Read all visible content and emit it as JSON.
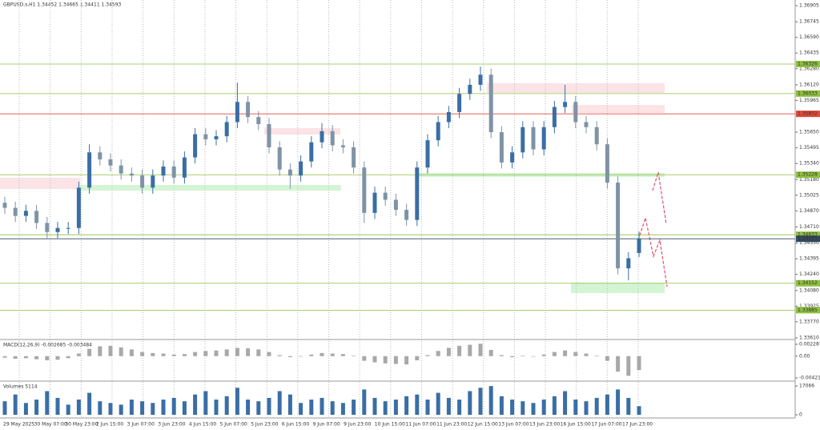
{
  "chart_data": [
    {
      "type": "candlestick",
      "title": "GBPUSD.s,H1  1.34452 1.34665 1.34411 1.34593",
      "open": [
        1.3495,
        1.349,
        1.3482,
        1.3487,
        1.3475,
        1.3466,
        1.347,
        1.347,
        1.351,
        1.3545,
        1.3538,
        1.3532,
        1.3524,
        1.3522,
        1.351,
        1.3522,
        1.3531,
        1.352,
        1.354,
        1.3563,
        1.3558,
        1.3561,
        1.3575,
        1.3595,
        1.358,
        1.3573,
        1.355,
        1.3528,
        1.3522,
        1.3536,
        1.3555,
        1.3566,
        1.3552,
        1.355,
        1.353,
        1.3485,
        1.3505,
        1.3498,
        1.3488,
        1.3478,
        1.353,
        1.3557,
        1.3575,
        1.3585,
        1.3603,
        1.3612,
        1.3622,
        1.3565,
        1.3535,
        1.3545,
        1.357,
        1.3548,
        1.357,
        1.359,
        1.3595,
        1.3575,
        1.357,
        1.3553,
        1.3515,
        1.343,
        1.34452
      ],
      "high": [
        1.3501,
        1.3496,
        1.3493,
        1.3493,
        1.3481,
        1.3476,
        1.3476,
        1.3516,
        1.3553,
        1.3551,
        1.3544,
        1.3538,
        1.353,
        1.3528,
        1.3528,
        1.3537,
        1.3537,
        1.3546,
        1.3569,
        1.3569,
        1.3567,
        1.3581,
        1.3614,
        1.3601,
        1.3586,
        1.3579,
        1.3556,
        1.3534,
        1.3542,
        1.3561,
        1.3574,
        1.3572,
        1.3558,
        1.3556,
        1.3536,
        1.3511,
        1.3511,
        1.3504,
        1.3494,
        1.3536,
        1.3563,
        1.3581,
        1.3591,
        1.3609,
        1.3618,
        1.363,
        1.3628,
        1.3571,
        1.3551,
        1.3576,
        1.3576,
        1.3576,
        1.3596,
        1.3612,
        1.3601,
        1.3581,
        1.3576,
        1.3559,
        1.3521,
        1.3446,
        1.34665
      ],
      "low": [
        1.3484,
        1.3476,
        1.3476,
        1.3469,
        1.346,
        1.346,
        1.3464,
        1.3464,
        1.3504,
        1.3532,
        1.3526,
        1.3518,
        1.3516,
        1.3504,
        1.3504,
        1.3516,
        1.3514,
        1.3514,
        1.3534,
        1.3552,
        1.3552,
        1.3555,
        1.3569,
        1.3574,
        1.3567,
        1.3544,
        1.3522,
        1.3509,
        1.3516,
        1.353,
        1.3549,
        1.3546,
        1.3544,
        1.3524,
        1.3475,
        1.3479,
        1.3492,
        1.3482,
        1.3472,
        1.3472,
        1.3524,
        1.3551,
        1.3569,
        1.3579,
        1.3597,
        1.3606,
        1.3559,
        1.3529,
        1.3529,
        1.3539,
        1.3542,
        1.3542,
        1.3564,
        1.3584,
        1.3569,
        1.3564,
        1.3547,
        1.3509,
        1.3424,
        1.3418,
        1.34411
      ],
      "close": [
        1.349,
        1.3482,
        1.3487,
        1.3475,
        1.3466,
        1.347,
        1.347,
        1.351,
        1.3545,
        1.3538,
        1.3532,
        1.3524,
        1.3522,
        1.351,
        1.3522,
        1.3531,
        1.352,
        1.354,
        1.3563,
        1.3558,
        1.3561,
        1.3575,
        1.3595,
        1.358,
        1.3573,
        1.355,
        1.3528,
        1.3522,
        1.3536,
        1.3555,
        1.3566,
        1.3552,
        1.355,
        1.353,
        1.3485,
        1.3505,
        1.3498,
        1.3488,
        1.3478,
        1.353,
        1.3557,
        1.3575,
        1.3585,
        1.3603,
        1.3612,
        1.3622,
        1.3565,
        1.3535,
        1.3545,
        1.357,
        1.3548,
        1.357,
        1.359,
        1.3595,
        1.3575,
        1.357,
        1.3553,
        1.3515,
        1.343,
        1.344,
        1.34593
      ],
      "up_color": "#3a6ea5",
      "down_color": "#7f93a6",
      "ylim": [
        1.33602,
        1.36961
      ],
      "yticks": [
        1.36905,
        1.36745,
        {
          "value": 1.3659,
          "label": "1.36590"
        },
        1.36435,
        {
          "value": 1.3628,
          "label": "1.36280"
        },
        {
          "value": 1.3612,
          "label": "1.36120"
        },
        1.35965,
        {
          "value": 1.3565,
          "label": "1.35650"
        },
        1.35495,
        {
          "value": 1.3534,
          "label": "1.35340"
        },
        {
          "value": 1.3518,
          "label": "1.35180"
        },
        1.35025,
        {
          "value": 1.3487,
          "label": "1.34870"
        },
        {
          "value": 1.3471,
          "label": "1.34710"
        },
        {
          "value": 1.3455,
          "label": "1.34550"
        },
        1.34395,
        {
          "value": 1.3424,
          "label": "1.34240"
        },
        {
          "value": 1.3408,
          "label": "1.34080"
        },
        1.33925,
        {
          "value": 1.3377,
          "label": "1.33770"
        },
        {
          "value": 1.3361,
          "label": "1.33610"
        }
      ],
      "xticks": [
        "29 May 2025",
        "30 May 07:00",
        "30 May 23:00",
        "2 Jun 15:00",
        "3 Jun 07:00",
        "3 Jun 23:00",
        "4 Jun 15:00",
        "5 Jun 07:00",
        "5 Jun 23:00",
        "6 Jun 15:00",
        "9 Jun 07:00",
        "9 Jun 23:00",
        "10 Jun 15:00",
        "11 Jun 07:00",
        "11 Jun 23:00",
        "12 Jun 15:00",
        "13 Jun 07:00",
        "13 Jun 23:00",
        "16 Jun 15:00",
        "17 Jun 07:00",
        "17 Jun 23:00"
      ],
      "levels": [
        {
          "value": 1.36326,
          "color": "#8fbf3f"
        },
        {
          "value": 1.36033,
          "color": "#8fbf3f"
        },
        {
          "value": 1.35832,
          "color": "#e0493a"
        },
        {
          "value": 1.35228,
          "color": "#8fbf3f"
        },
        {
          "value": 1.34633,
          "color": "#8fbf3f"
        },
        {
          "value": 1.34593,
          "color": "#34495e"
        },
        {
          "value": 1.34152,
          "color": "#8fbf3f"
        },
        {
          "value": 1.33885,
          "color": "#8fbf3f"
        }
      ]
    },
    {
      "type": "bar",
      "title": "MACD(12,26,9) -0.002685 -0.003484",
      "color": "#a8a8a8",
      "values": [
        -0.0003,
        -0.0005,
        -0.0004,
        -0.0006,
        -0.0008,
        -0.0007,
        -0.0004,
        0.0005,
        0.0014,
        0.0019,
        0.002,
        0.0017,
        0.0013,
        0.0008,
        0.0006,
        0.0005,
        0.0003,
        0.0004,
        0.0008,
        0.001,
        0.0011,
        0.0013,
        0.0016,
        0.0015,
        0.0013,
        0.0008,
        0.0002,
        -0.0002,
        -0.0001,
        0.0003,
        0.0006,
        0.0005,
        0.0004,
        0.0001,
        -0.0009,
        -0.0012,
        -0.0014,
        -0.0015,
        -0.0016,
        -0.0008,
        0.0002,
        0.001,
        0.0016,
        0.002,
        0.0022,
        0.0024,
        0.0012,
        0.0002,
        -0.0002,
        0.0001,
        -0.0001,
        0.0003,
        0.0008,
        0.0011,
        0.0008,
        0.0005,
        0.0001,
        -0.0009,
        -0.003,
        -0.0038,
        -0.002685
      ],
      "ylim": [
        -0.00468,
        0.003061
      ],
      "yticks": [
        0.002287,
        {
          "value": 0,
          "label": "0.00"
        },
        -0.004216
      ]
    },
    {
      "type": "bar",
      "title": "Volumes 5114",
      "color": "#3a6ea5",
      "values": [
        8000,
        12000,
        7000,
        9000,
        14000,
        10000,
        6000,
        9000,
        13000,
        8000,
        7000,
        6000,
        9000,
        8000,
        7000,
        9000,
        10000,
        8000,
        12000,
        14000,
        9000,
        11000,
        16000,
        9000,
        8000,
        10000,
        14000,
        12000,
        7000,
        9000,
        10000,
        8000,
        7000,
        9000,
        15000,
        10000,
        8000,
        9000,
        11000,
        12000,
        9000,
        13000,
        10000,
        9000,
        14000,
        16000,
        17000,
        11000,
        9000,
        8000,
        7000,
        9000,
        11000,
        14000,
        9000,
        8000,
        10000,
        12000,
        15000,
        10000,
        5114
      ],
      "ylim": [
        -1896,
        19436
      ],
      "yticks": [
        17066,
        0
      ]
    }
  ]
}
